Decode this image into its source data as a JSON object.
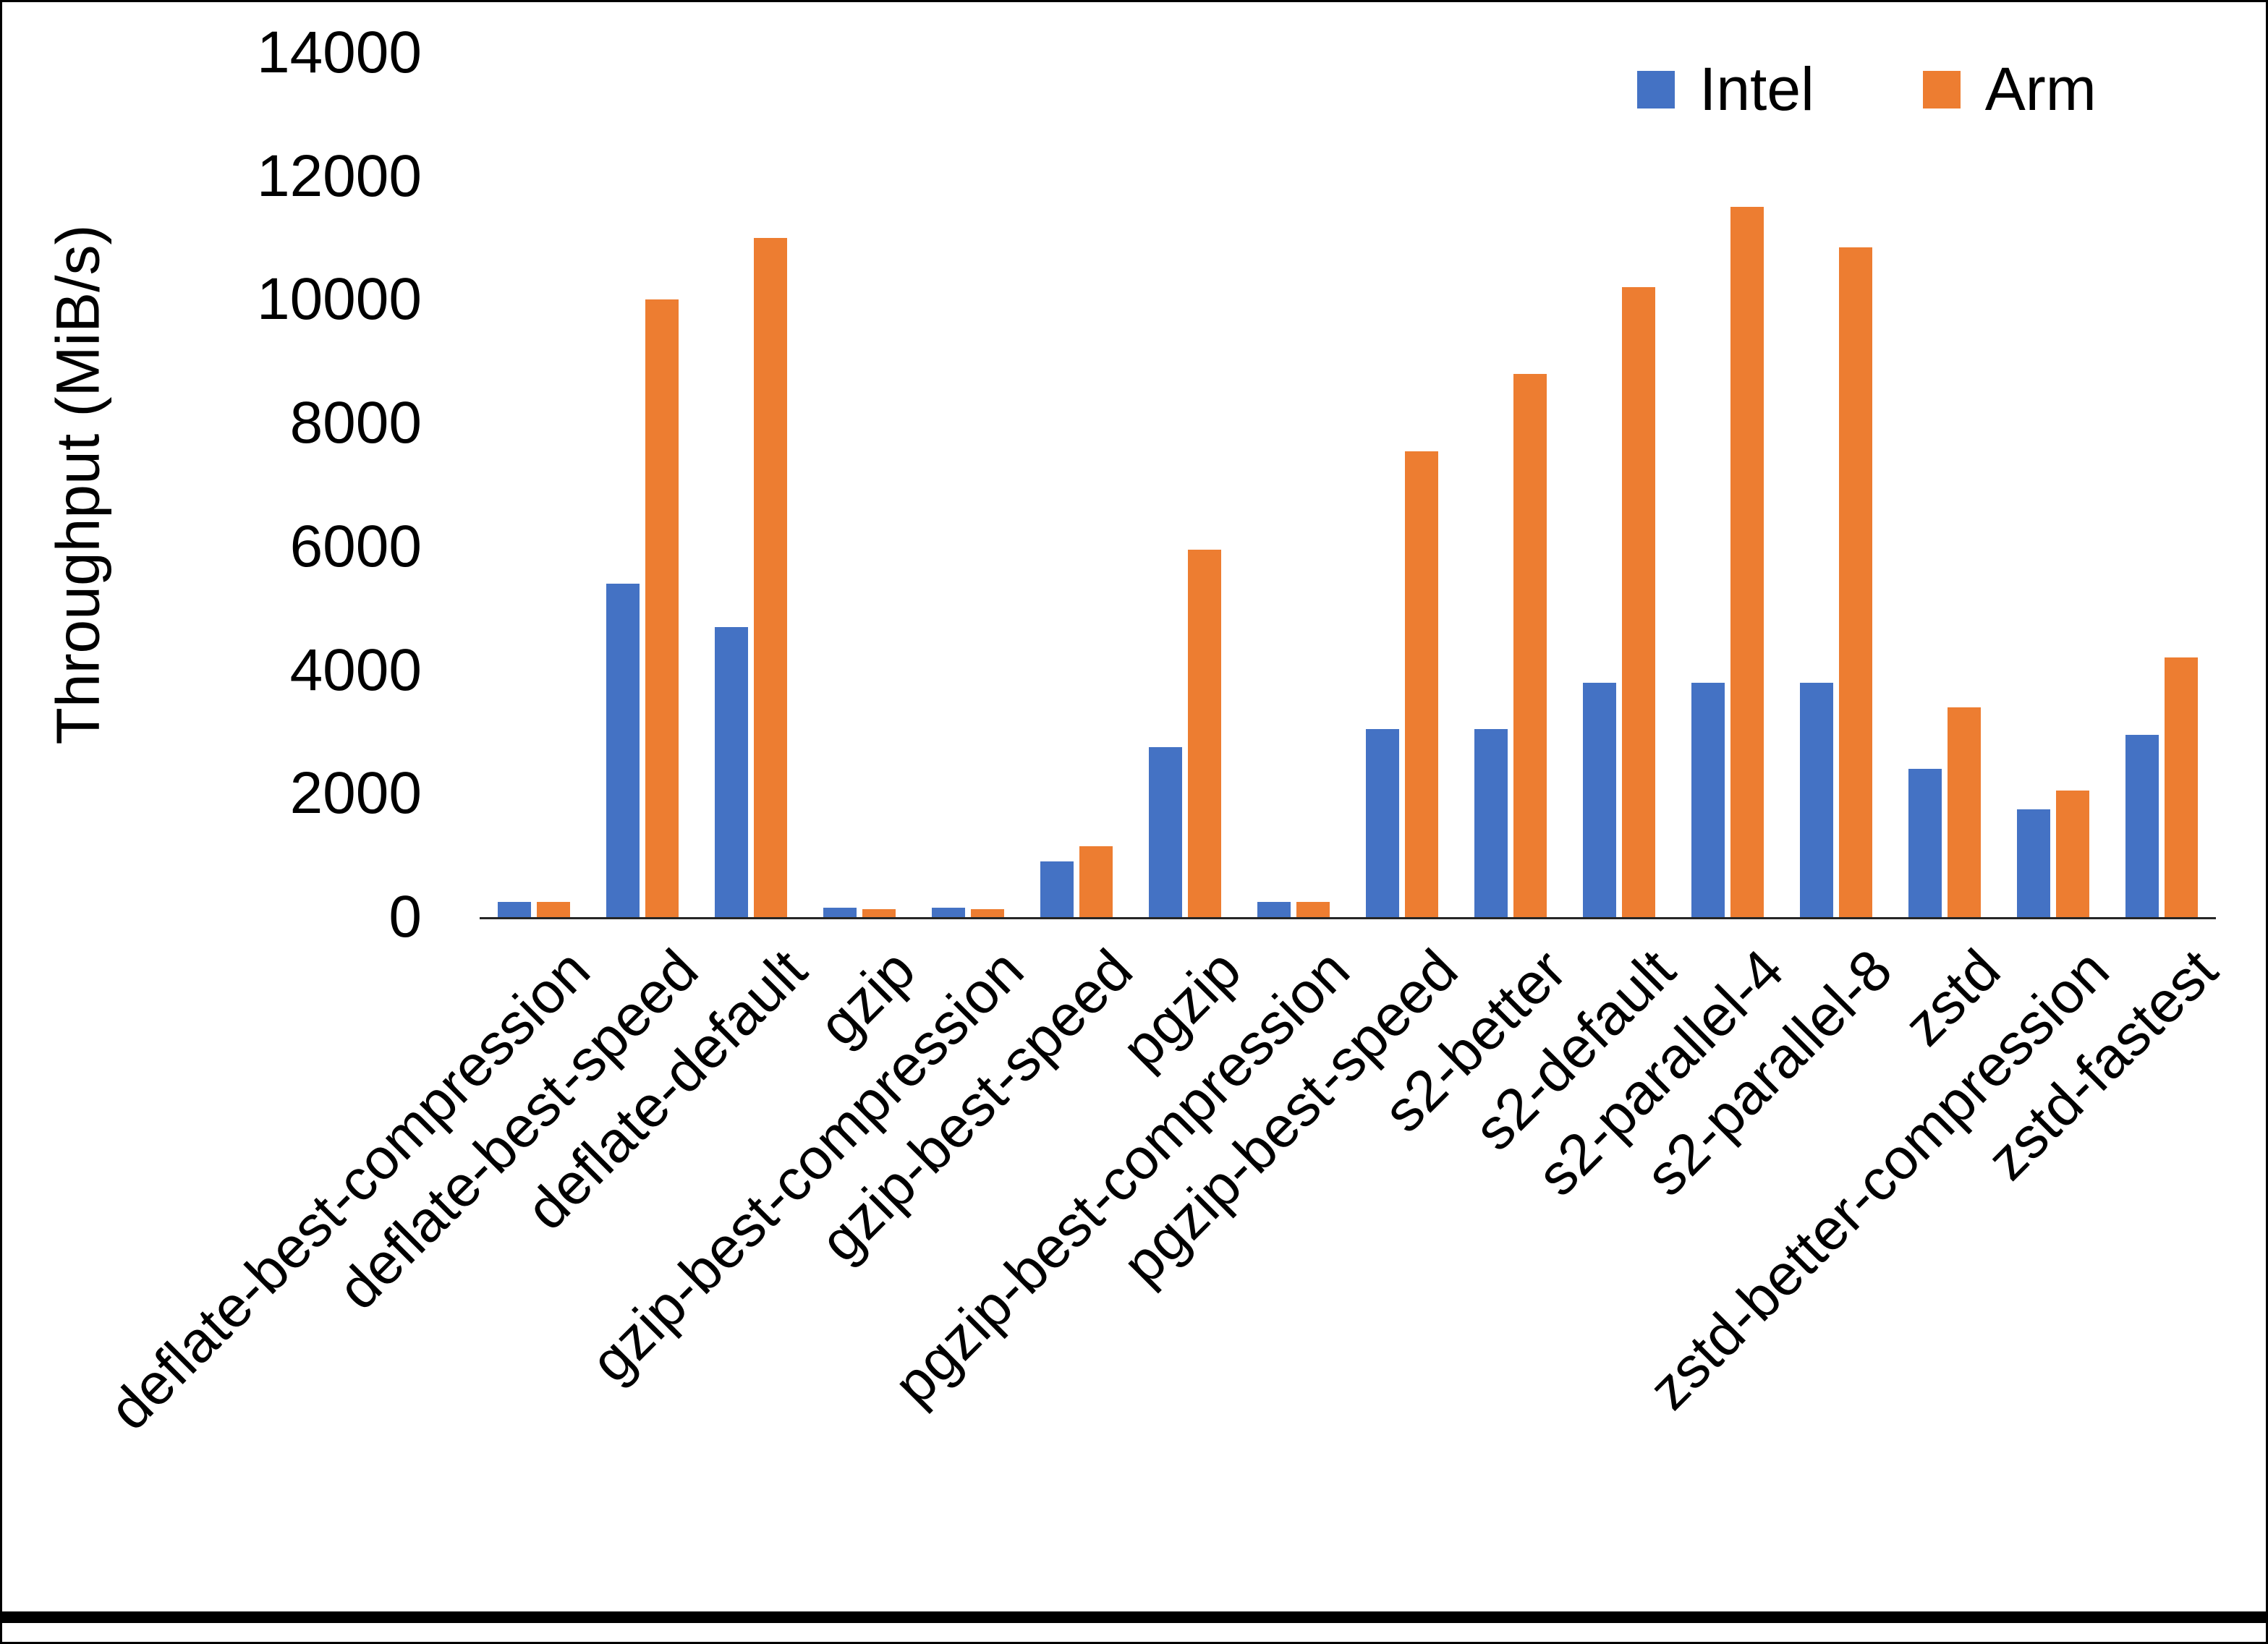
{
  "chart_data": {
    "type": "bar",
    "title": "",
    "xlabel": "",
    "ylabel": "Throughput (MiB/s)",
    "ylim": [
      0,
      14000
    ],
    "ytick_step": 2000,
    "grid": false,
    "legend_position": "top-right",
    "background_color": "#ffffff",
    "axis_color": "#262626",
    "text_color": "#000000",
    "categories": [
      "deflate-best-compression",
      "deflate-best-speed",
      "deflate-default",
      "gzip",
      "gzip-best-compression",
      "gzip-best-speed",
      "pgzip",
      "pgzip-best-compression",
      "pgzip-best-speed",
      "s2-better",
      "s2-default",
      "s2-parallel-4",
      "s2-parallel-8",
      "zstd",
      "zstd-better-compression",
      "zstd-fastest"
    ],
    "series": [
      {
        "name": "Intel",
        "color": "#4472C4",
        "values": [
          250,
          5400,
          4700,
          150,
          150,
          900,
          2750,
          250,
          3050,
          3050,
          3800,
          3800,
          3800,
          2400,
          1750,
          2950
        ]
      },
      {
        "name": "Arm",
        "color": "#ED7D31",
        "values": [
          250,
          10000,
          11000,
          130,
          130,
          1150,
          5950,
          250,
          7550,
          8800,
          10200,
          11500,
          10850,
          3400,
          2050,
          4200
        ]
      }
    ]
  }
}
